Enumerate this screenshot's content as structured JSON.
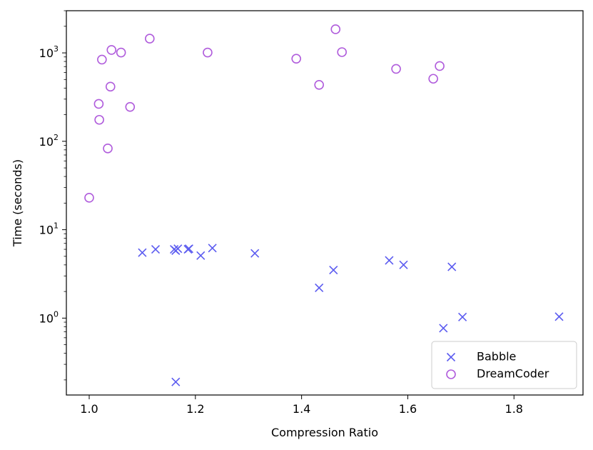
{
  "chart_data": {
    "type": "scatter",
    "xlabel": "Compression Ratio",
    "ylabel": "Time (seconds)",
    "xlim": [
      0.957,
      1.93
    ],
    "ylim": [
      0.135,
      3000
    ],
    "yscale": "log",
    "x_ticks": [
      {
        "value": 1.0,
        "label": "1.0"
      },
      {
        "value": 1.2,
        "label": "1.2"
      },
      {
        "value": 1.4,
        "label": "1.4"
      },
      {
        "value": 1.6,
        "label": "1.6"
      },
      {
        "value": 1.8,
        "label": "1.8"
      }
    ],
    "y_ticks": [
      {
        "value": 1,
        "base": "10",
        "exp": "0"
      },
      {
        "value": 10,
        "base": "10",
        "exp": "1"
      },
      {
        "value": 100,
        "base": "10",
        "exp": "2"
      },
      {
        "value": 1000,
        "base": "10",
        "exp": "3"
      }
    ],
    "legend_position": "lower right",
    "series": [
      {
        "name": "Babble",
        "marker": "x",
        "color": "#5b5bf0",
        "points": [
          [
            1.1,
            5.5
          ],
          [
            1.125,
            6.0
          ],
          [
            1.16,
            6.0
          ],
          [
            1.163,
            5.8
          ],
          [
            1.167,
            6.1
          ],
          [
            1.186,
            6.0
          ],
          [
            1.188,
            6.1
          ],
          [
            1.21,
            5.1
          ],
          [
            1.232,
            6.2
          ],
          [
            1.312,
            5.4
          ],
          [
            1.433,
            2.2
          ],
          [
            1.46,
            3.5
          ],
          [
            1.565,
            4.5
          ],
          [
            1.592,
            4.0
          ],
          [
            1.683,
            3.8
          ],
          [
            1.667,
            0.77
          ],
          [
            1.703,
            1.03
          ],
          [
            1.885,
            1.04
          ],
          [
            1.163,
            0.19
          ]
        ]
      },
      {
        "name": "DreamCoder",
        "marker": "o",
        "color": "#b05cdc",
        "points": [
          [
            1.0,
            23
          ],
          [
            1.018,
            265
          ],
          [
            1.019,
            175
          ],
          [
            1.024,
            840
          ],
          [
            1.035,
            83
          ],
          [
            1.04,
            415
          ],
          [
            1.042,
            1080
          ],
          [
            1.06,
            1010
          ],
          [
            1.077,
            245
          ],
          [
            1.114,
            1450
          ],
          [
            1.223,
            1010
          ],
          [
            1.39,
            860
          ],
          [
            1.433,
            435
          ],
          [
            1.464,
            1850
          ],
          [
            1.476,
            1020
          ],
          [
            1.578,
            660
          ],
          [
            1.648,
            510
          ],
          [
            1.66,
            710
          ]
        ]
      }
    ]
  }
}
